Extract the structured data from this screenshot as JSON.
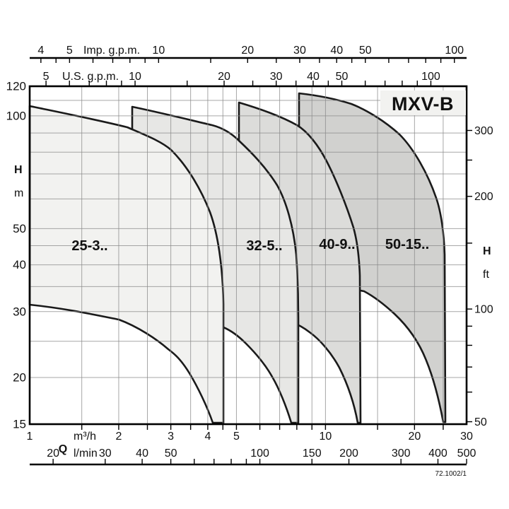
{
  "title": "MXV-B",
  "doc_number": "72.1002/1",
  "colors": {
    "region1_fill": "#f2f2f0",
    "region2_fill": "#e7e7e5",
    "region3_fill": "#dcdcda",
    "region4_fill": "#d1d1cf",
    "title_box_fill": "#f2f2f0",
    "grid": "#8a8a8a",
    "curve": "#1a1a1a"
  },
  "regions": [
    {
      "label": "25-3..",
      "fill": "#f2f2f0"
    },
    {
      "label": "32-5..",
      "fill": "#e7e7e5"
    },
    {
      "label": "40-9..",
      "fill": "#dcdcda"
    },
    {
      "label": "50-15..",
      "fill": "#d1d1cf"
    }
  ],
  "axes": {
    "imp_gpm": {
      "label": "Imp. g.p.m.",
      "labeled_ticks": [
        4,
        5,
        10,
        20,
        30,
        40,
        50,
        100
      ],
      "minor_ticks": [
        4,
        4.5,
        5,
        6,
        7,
        8,
        9,
        10,
        15,
        20,
        25,
        30,
        35,
        40,
        45,
        50,
        60,
        70,
        80,
        90,
        100
      ]
    },
    "us_gpm": {
      "label": "U.S. g.p.m.",
      "labeled_ticks": [
        5,
        10,
        20,
        30,
        40,
        50,
        100
      ],
      "minor_ticks": [
        5,
        6,
        7,
        8,
        9,
        10,
        15,
        20,
        25,
        30,
        35,
        40,
        45,
        50,
        60,
        70,
        80,
        90,
        100
      ]
    },
    "m3h": {
      "label": "m³/h",
      "labeled_ticks": [
        1,
        2,
        3,
        4,
        5,
        10,
        20,
        30
      ],
      "minor_ticks": [
        1.5,
        2,
        2.5,
        3,
        3.5,
        4,
        4.5,
        5,
        6,
        7,
        8,
        9,
        10,
        15,
        20,
        25
      ]
    },
    "lmin": {
      "label": "l/min",
      "labeled_ticks": [
        20,
        30,
        40,
        50,
        100,
        150,
        200,
        300,
        400,
        500
      ],
      "minor_ticks": [
        20,
        30,
        40,
        50,
        60,
        70,
        80,
        90,
        100,
        150,
        200,
        300,
        400,
        500
      ]
    },
    "h_m": {
      "label_h": "H",
      "label_unit": "m",
      "labeled_ticks": [
        120,
        100,
        50,
        40,
        30,
        20,
        15
      ]
    },
    "h_ft": {
      "label_h": "H",
      "label_unit": "ft",
      "labeled_ticks": [
        300,
        200,
        100,
        50
      ],
      "minor_ticks": [
        50,
        60,
        70,
        80,
        90,
        100,
        150,
        200,
        250,
        300
      ]
    },
    "q_label": "Q"
  },
  "grid": {
    "x_values_m3h": [
      1.5,
      2,
      2.5,
      3,
      3.5,
      4,
      4.5,
      5,
      6,
      7,
      8,
      9,
      10,
      15,
      20,
      25
    ],
    "y_values_m": [
      20,
      25,
      30,
      35,
      40,
      45,
      50,
      60,
      70,
      80,
      90,
      100,
      110
    ]
  },
  "chart_data": {
    "type": "area",
    "title": "MXV-B",
    "xlabel": "Q (m³/h, l/min, U.S. g.p.m., Imp. g.p.m.)",
    "ylabel": "H (m, ft)",
    "x_scale": "log",
    "y_scale": "log",
    "xlim_m3h": [
      1,
      30
    ],
    "ylim_m": [
      15,
      120
    ],
    "grid": true,
    "series": [
      {
        "name": "25-3..",
        "top_envelope_q_h": [
          [
            1,
            106
          ],
          [
            1.5,
            100
          ],
          [
            2,
            95
          ],
          [
            2.5,
            89
          ],
          [
            3,
            81
          ],
          [
            3.5,
            65
          ],
          [
            4,
            52
          ],
          [
            4.5,
            31
          ],
          [
            4.5,
            15
          ]
        ],
        "bottom_envelope_q_h": [
          [
            1,
            31.5
          ],
          [
            1.5,
            30.5
          ],
          [
            2,
            29
          ],
          [
            2.5,
            26
          ],
          [
            3,
            23
          ],
          [
            3.6,
            18
          ],
          [
            4.2,
            15
          ]
        ]
      },
      {
        "name": "32-5..",
        "top_envelope_q_h": [
          [
            2.4,
            106
          ],
          [
            3,
            101
          ],
          [
            4,
            95
          ],
          [
            5.1,
            86
          ],
          [
            6,
            76
          ],
          [
            7,
            63
          ],
          [
            7.7,
            45
          ],
          [
            8.1,
            28
          ],
          [
            8.1,
            15
          ]
        ],
        "bottom_envelope_q_h": [
          [
            4.5,
            27.5
          ],
          [
            5.3,
            25
          ],
          [
            6,
            23
          ],
          [
            7,
            19
          ],
          [
            7.7,
            15
          ]
        ]
      },
      {
        "name": "40-9..",
        "top_envelope_q_h": [
          [
            5.1,
            109
          ],
          [
            6.5,
            101
          ],
          [
            8.1,
            95
          ],
          [
            9,
            85
          ],
          [
            10,
            75
          ],
          [
            11,
            62
          ],
          [
            12.4,
            51
          ],
          [
            13,
            33
          ],
          [
            13.1,
            15
          ]
        ],
        "bottom_envelope_q_h": [
          [
            8.1,
            28.5
          ],
          [
            9,
            26.5
          ],
          [
            10,
            24.5
          ],
          [
            11,
            21
          ],
          [
            12,
            17.5
          ],
          [
            13,
            15
          ]
        ]
      },
      {
        "name": "50-15..",
        "top_envelope_q_h": [
          [
            8.1,
            115
          ],
          [
            10,
            110
          ],
          [
            12,
            105
          ],
          [
            14,
            102
          ],
          [
            17,
            94
          ],
          [
            20,
            80
          ],
          [
            23,
            65
          ],
          [
            25,
            53
          ],
          [
            25.5,
            21
          ],
          [
            25.5,
            15
          ]
        ],
        "bottom_envelope_q_h": [
          [
            13.3,
            34
          ],
          [
            15,
            31.5
          ],
          [
            17,
            29.5
          ],
          [
            19,
            27
          ],
          [
            21,
            25
          ],
          [
            23,
            22.5
          ],
          [
            24.5,
            20
          ],
          [
            25.4,
            15
          ]
        ]
      }
    ],
    "annotations": [
      "25-3..",
      "32-5..",
      "40-9..",
      "50-15..",
      "MXV-B",
      "72.1002/1"
    ]
  }
}
